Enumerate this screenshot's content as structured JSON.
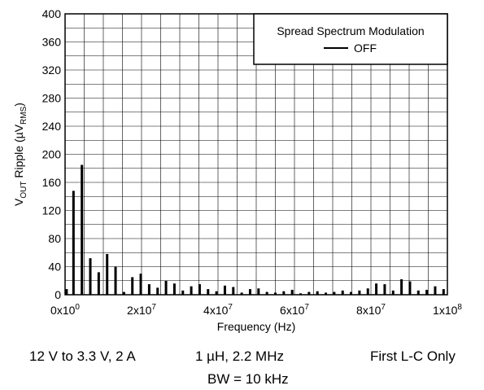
{
  "chart_data": {
    "type": "bar",
    "title": "",
    "xlabel": "Frequency (Hz)",
    "ylabel": {
      "prefix": "V",
      "prefix_sub": "OUT",
      "middle": " Ripple (µV",
      "unit_sub": "RMS",
      "suffix": ")"
    },
    "xlim": [
      0,
      100000000
    ],
    "ylim": [
      0,
      400
    ],
    "x_ticks": [
      {
        "value": 0,
        "mantissa": "0x10",
        "exp": "0"
      },
      {
        "value": 20000000,
        "mantissa": "2x10",
        "exp": "7"
      },
      {
        "value": 40000000,
        "mantissa": "4x10",
        "exp": "7"
      },
      {
        "value": 60000000,
        "mantissa": "6x10",
        "exp": "7"
      },
      {
        "value": 80000000,
        "mantissa": "8x10",
        "exp": "7"
      },
      {
        "value": 100000000,
        "mantissa": "1x10",
        "exp": "8"
      }
    ],
    "y_ticks": [
      "0",
      "40",
      "80",
      "120",
      "160",
      "200",
      "240",
      "280",
      "320",
      "360",
      "400"
    ],
    "grid": true,
    "legend": {
      "title": "Spread Spectrum Modulation",
      "entries": [
        "OFF"
      ],
      "position": "top-right"
    },
    "series": [
      {
        "name": "OFF",
        "color": "#000000",
        "x": [
          400000,
          2200000,
          4400000,
          6600000,
          8800000,
          11000000,
          13200000,
          15400000,
          17600000,
          19800000,
          22000000,
          24200000,
          26400000,
          28600000,
          30800000,
          33000000,
          35200000,
          37400000,
          39600000,
          41800000,
          44000000,
          46200000,
          48400000,
          50600000,
          52800000,
          55000000,
          57200000,
          59400000,
          61600000,
          63800000,
          66000000,
          68200000,
          70400000,
          72600000,
          74800000,
          77000000,
          79200000,
          81400000,
          83600000,
          85800000,
          88000000,
          90200000,
          92400000,
          94600000,
          96800000,
          99000000
        ],
        "values": [
          8,
          148,
          185,
          52,
          32,
          58,
          40,
          4,
          25,
          30,
          15,
          10,
          20,
          16,
          6,
          12,
          15,
          8,
          5,
          13,
          11,
          3,
          8,
          9,
          4,
          3,
          5,
          7,
          2,
          4,
          5,
          3,
          4,
          6,
          4,
          6,
          9,
          16,
          15,
          6,
          22,
          19,
          6,
          7,
          12,
          8
        ]
      }
    ]
  },
  "captions": {
    "conditions": "12 V to 3.3 V, 2 A",
    "inductor": "1 µH, 2.2 MHz",
    "filter": "First L-C Only",
    "bandwidth": "BW = 10 kHz"
  }
}
